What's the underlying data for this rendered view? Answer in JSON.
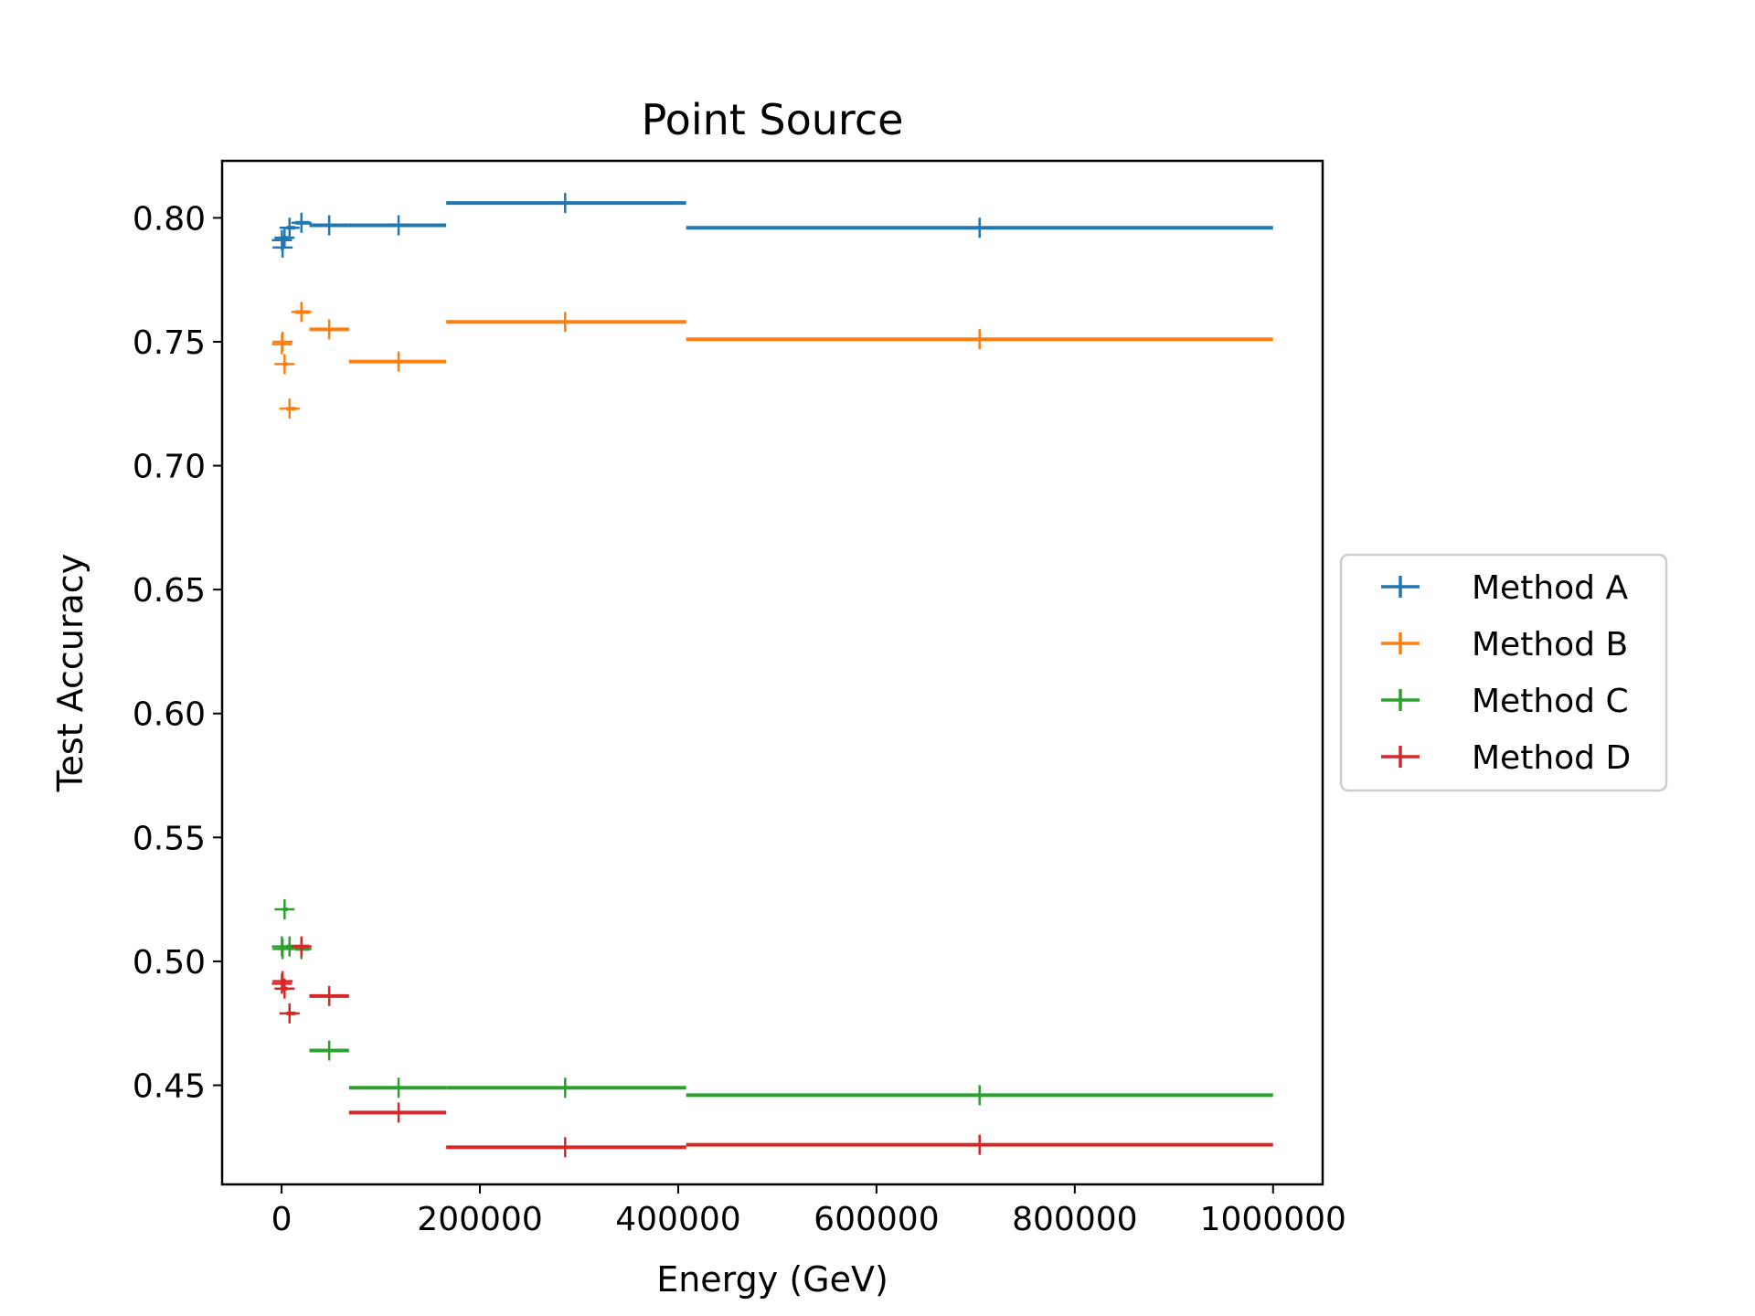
{
  "chart_data": {
    "type": "scatter",
    "title": "Point Source",
    "xlabel": "Energy (GeV)",
    "ylabel": "Test Accuracy",
    "xlim": [
      -60000,
      1050000
    ],
    "ylim": [
      0.41,
      0.823
    ],
    "xticks": [
      0,
      200000,
      400000,
      600000,
      800000,
      1000000
    ],
    "xtick_labels": [
      "0",
      "200000",
      "400000",
      "600000",
      "800000",
      "1000000"
    ],
    "yticks": [
      0.45,
      0.5,
      0.55,
      0.6,
      0.65,
      0.7,
      0.75,
      0.8
    ],
    "ytick_labels": [
      "0.45",
      "0.50",
      "0.55",
      "0.60",
      "0.65",
      "0.70",
      "0.75",
      "0.80"
    ],
    "grid": false,
    "legend_position": "outside-right",
    "series": [
      {
        "name": "Method A",
        "color": "#1f77b4",
        "points": [
          {
            "x": 300,
            "y": 0.791,
            "xerr": [
              300,
              300
            ]
          },
          {
            "x": 1000,
            "y": 0.788,
            "xerr": [
              400,
              1500
            ]
          },
          {
            "x": 3000,
            "y": 0.792,
            "xerr": [
              1500,
              3000
            ]
          },
          {
            "x": 8000,
            "y": 0.796,
            "xerr": [
              3000,
              6000
            ]
          },
          {
            "x": 20000,
            "y": 0.798,
            "xerr": [
              6000,
              8000
            ]
          },
          {
            "x": 48000,
            "y": 0.797,
            "xerr": [
              20000,
              20000
            ]
          },
          {
            "x": 118000,
            "y": 0.797,
            "xerr": [
              50000,
              48000
            ]
          },
          {
            "x": 286000,
            "y": 0.806,
            "xerr": [
              120000,
              122000
            ]
          },
          {
            "x": 704000,
            "y": 0.796,
            "xerr": [
              296000,
              296000
            ]
          }
        ]
      },
      {
        "name": "Method B",
        "color": "#ff7f0e",
        "points": [
          {
            "x": 300,
            "y": 0.749,
            "xerr": [
              300,
              300
            ]
          },
          {
            "x": 1000,
            "y": 0.75,
            "xerr": [
              400,
              1500
            ]
          },
          {
            "x": 3000,
            "y": 0.741,
            "xerr": [
              1500,
              3000
            ]
          },
          {
            "x": 8000,
            "y": 0.723,
            "xerr": [
              3000,
              6000
            ]
          },
          {
            "x": 20000,
            "y": 0.762,
            "xerr": [
              6000,
              8000
            ]
          },
          {
            "x": 48000,
            "y": 0.755,
            "xerr": [
              20000,
              20000
            ]
          },
          {
            "x": 118000,
            "y": 0.742,
            "xerr": [
              50000,
              48000
            ]
          },
          {
            "x": 286000,
            "y": 0.758,
            "xerr": [
              120000,
              122000
            ]
          },
          {
            "x": 704000,
            "y": 0.751,
            "xerr": [
              296000,
              296000
            ]
          }
        ]
      },
      {
        "name": "Method C",
        "color": "#2ca02c",
        "points": [
          {
            "x": 300,
            "y": 0.506,
            "xerr": [
              300,
              300
            ]
          },
          {
            "x": 1000,
            "y": 0.505,
            "xerr": [
              400,
              1500
            ]
          },
          {
            "x": 3000,
            "y": 0.521,
            "xerr": [
              1500,
              3000
            ]
          },
          {
            "x": 8000,
            "y": 0.506,
            "xerr": [
              3000,
              6000
            ]
          },
          {
            "x": 20000,
            "y": 0.505,
            "xerr": [
              6000,
              8000
            ]
          },
          {
            "x": 48000,
            "y": 0.464,
            "xerr": [
              20000,
              20000
            ]
          },
          {
            "x": 118000,
            "y": 0.449,
            "xerr": [
              50000,
              48000
            ]
          },
          {
            "x": 286000,
            "y": 0.449,
            "xerr": [
              120000,
              122000
            ]
          },
          {
            "x": 704000,
            "y": 0.446,
            "xerr": [
              296000,
              296000
            ]
          }
        ]
      },
      {
        "name": "Method D",
        "color": "#d62728",
        "points": [
          {
            "x": 300,
            "y": 0.491,
            "xerr": [
              300,
              300
            ]
          },
          {
            "x": 1000,
            "y": 0.492,
            "xerr": [
              400,
              1500
            ]
          },
          {
            "x": 3000,
            "y": 0.489,
            "xerr": [
              1500,
              3000
            ]
          },
          {
            "x": 8000,
            "y": 0.479,
            "xerr": [
              3000,
              6000
            ]
          },
          {
            "x": 20000,
            "y": 0.506,
            "xerr": [
              6000,
              8000
            ]
          },
          {
            "x": 48000,
            "y": 0.486,
            "xerr": [
              20000,
              20000
            ]
          },
          {
            "x": 118000,
            "y": 0.439,
            "xerr": [
              50000,
              48000
            ]
          },
          {
            "x": 286000,
            "y": 0.425,
            "xerr": [
              120000,
              122000
            ]
          },
          {
            "x": 704000,
            "y": 0.426,
            "xerr": [
              296000,
              296000
            ]
          }
        ]
      }
    ]
  }
}
